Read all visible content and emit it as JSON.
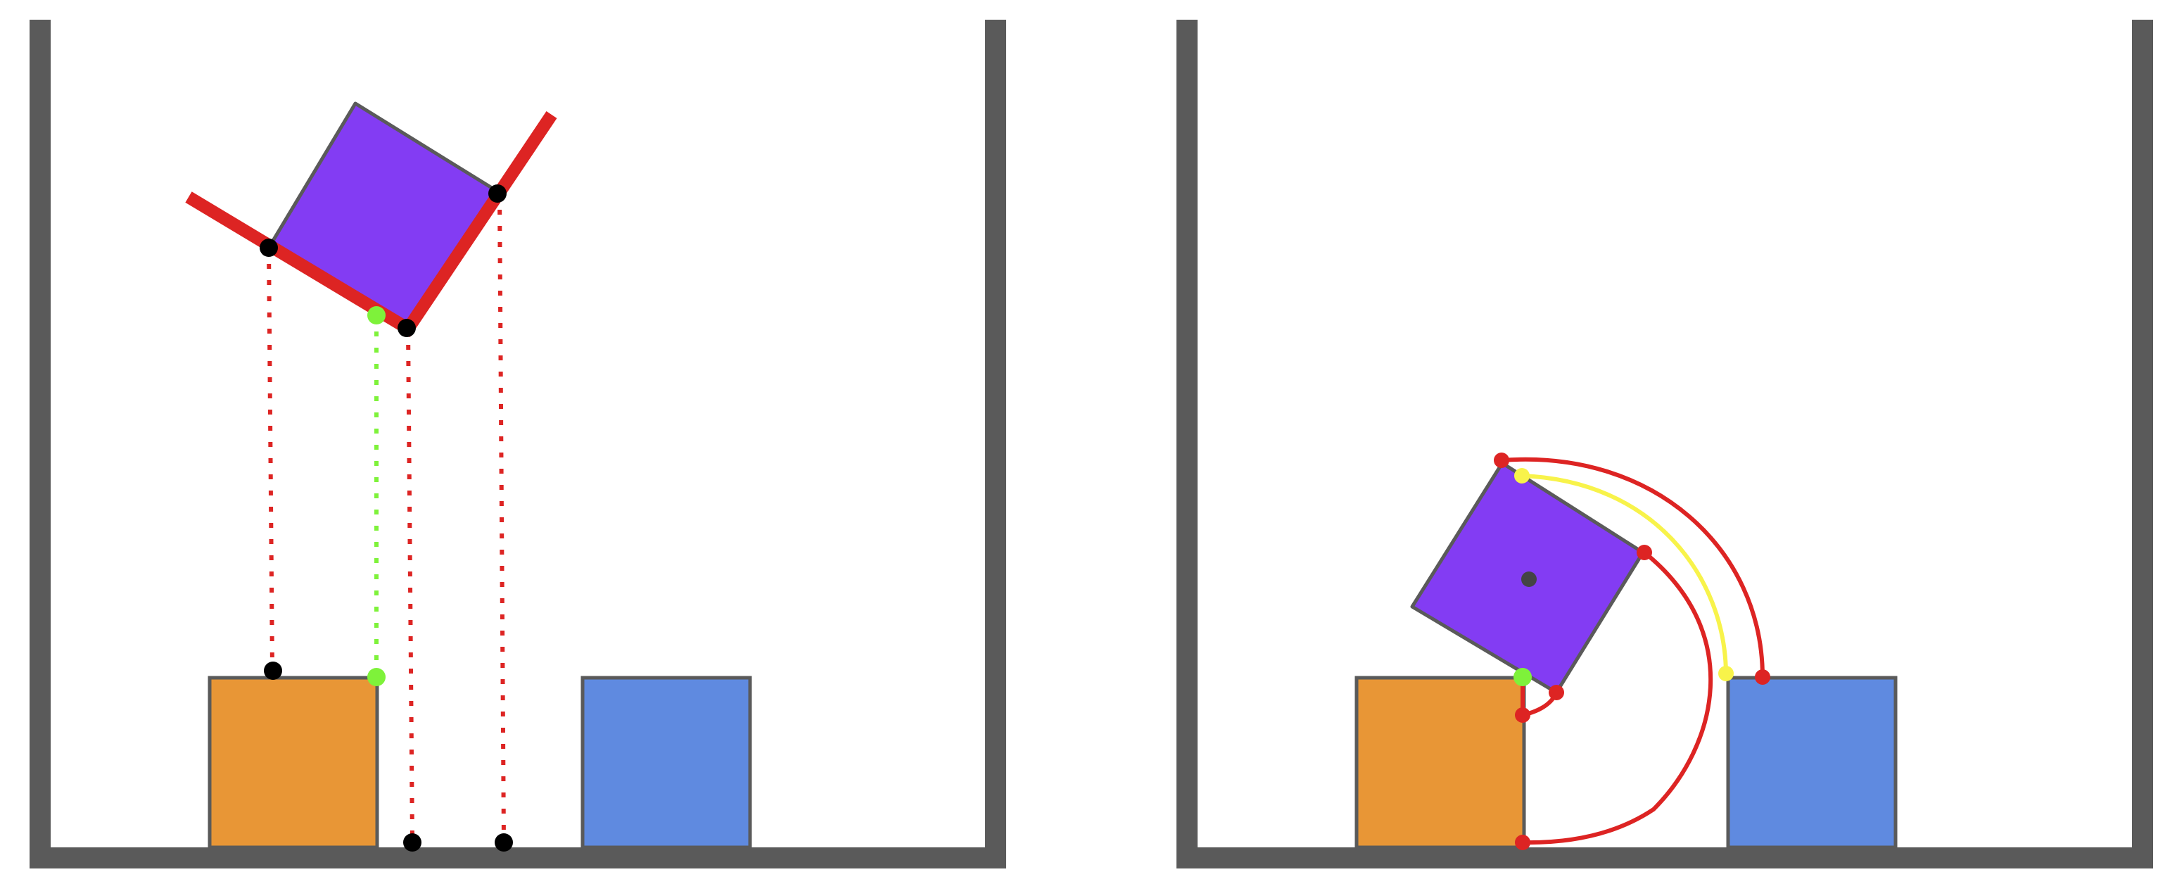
{
  "diagram": {
    "colors": {
      "wall": "#5a5a5a",
      "orange_block": "#e89636",
      "blue_block": "#5f8ae0",
      "purple_block": "#833cf3",
      "outline": "#5a5a5a",
      "red": "#dd2423",
      "green": "#7ef23a",
      "yellow": "#f8f34a",
      "black": "#000000"
    },
    "panels": [
      {
        "name": "left-panel",
        "objects": [
          "container",
          "orange-block",
          "blue-block",
          "rotated-purple-block",
          "red-bracket",
          "projection-lines",
          "contact-points"
        ]
      },
      {
        "name": "right-panel",
        "objects": [
          "container",
          "orange-block",
          "blue-block",
          "tilted-purple-block",
          "center-point",
          "swing-arcs",
          "contact-points"
        ]
      }
    ],
    "icons": [
      "dotted-projection-line",
      "black-point",
      "green-point",
      "red-point",
      "yellow-point",
      "arc"
    ]
  }
}
